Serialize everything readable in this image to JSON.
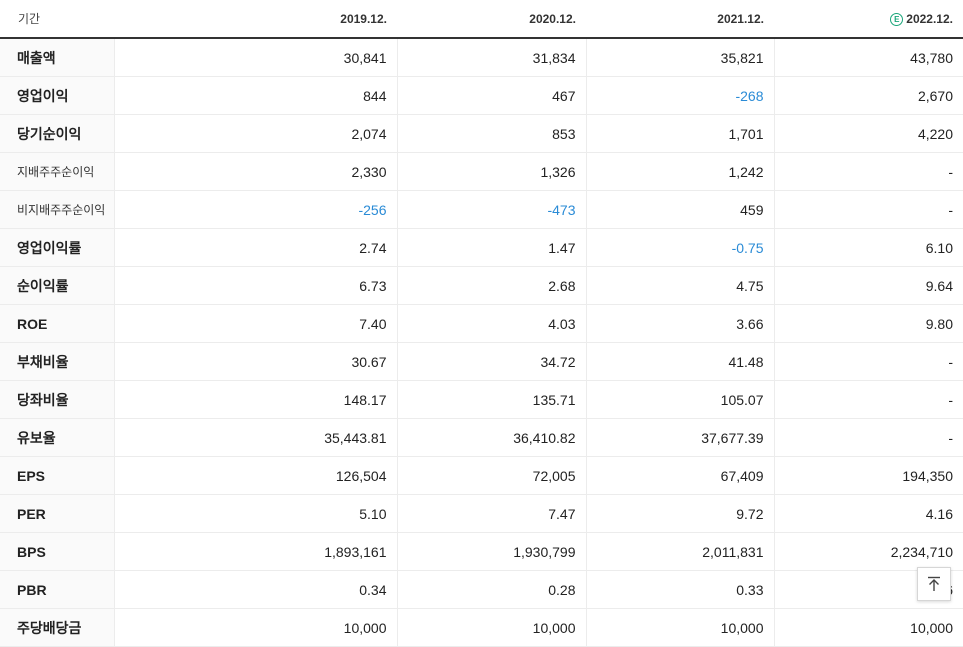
{
  "header": {
    "label": "기간",
    "estimate_badge": "E",
    "years": [
      "2019.12.",
      "2020.12.",
      "2021.12.",
      "2022.12."
    ]
  },
  "rows": [
    {
      "label": "매출액",
      "values": [
        "30,841",
        "31,834",
        "35,821",
        "43,780"
      ],
      "sub": false,
      "group_start": false
    },
    {
      "label": "영업이익",
      "values": [
        "844",
        "467",
        "-268",
        "2,670"
      ],
      "sub": false,
      "group_start": false
    },
    {
      "label": "당기순이익",
      "values": [
        "2,074",
        "853",
        "1,701",
        "4,220"
      ],
      "sub": false,
      "group_start": false
    },
    {
      "label": "지배주주순이익",
      "values": [
        "2,330",
        "1,326",
        "1,242",
        "-"
      ],
      "sub": true,
      "group_start": false
    },
    {
      "label": "비지배주주순이익",
      "values": [
        "-256",
        "-473",
        "459",
        "-"
      ],
      "sub": true,
      "group_start": false
    },
    {
      "label": "영업이익률",
      "values": [
        "2.74",
        "1.47",
        "-0.75",
        "6.10"
      ],
      "sub": false,
      "group_start": true
    },
    {
      "label": "순이익률",
      "values": [
        "6.73",
        "2.68",
        "4.75",
        "9.64"
      ],
      "sub": false,
      "group_start": false
    },
    {
      "label": "ROE",
      "values": [
        "7.40",
        "4.03",
        "3.66",
        "9.80"
      ],
      "sub": false,
      "group_start": false
    },
    {
      "label": "부채비율",
      "values": [
        "30.67",
        "34.72",
        "41.48",
        "-"
      ],
      "sub": false,
      "group_start": true
    },
    {
      "label": "당좌비율",
      "values": [
        "148.17",
        "135.71",
        "105.07",
        "-"
      ],
      "sub": false,
      "group_start": false
    },
    {
      "label": "유보율",
      "values": [
        "35,443.81",
        "36,410.82",
        "37,677.39",
        "-"
      ],
      "sub": false,
      "group_start": false
    },
    {
      "label": "EPS",
      "values": [
        "126,504",
        "72,005",
        "67,409",
        "194,350"
      ],
      "sub": false,
      "group_start": true
    },
    {
      "label": "PER",
      "values": [
        "5.10",
        "7.47",
        "9.72",
        "4.16"
      ],
      "sub": false,
      "group_start": false
    },
    {
      "label": "BPS",
      "values": [
        "1,893,161",
        "1,930,799",
        "2,011,831",
        "2,234,710"
      ],
      "sub": false,
      "group_start": false
    },
    {
      "label": "PBR",
      "values": [
        "0.34",
        "0.28",
        "0.33",
        "0.36"
      ],
      "sub": false,
      "group_start": false
    },
    {
      "label": "주당배당금",
      "values": [
        "10,000",
        "10,000",
        "10,000",
        "10,000"
      ],
      "sub": false,
      "group_start": true
    }
  ],
  "colors": {
    "negative": "#2a8bd6",
    "estimate_badge": "#1aa67a"
  },
  "scroll_top_icon": "arrow-up-to-top-icon"
}
